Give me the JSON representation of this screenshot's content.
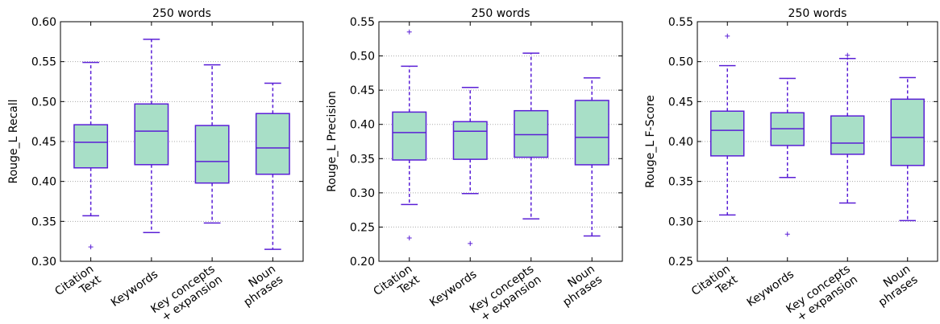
{
  "chart_data": [
    {
      "type": "box",
      "title": "250 words",
      "ylabel": "Rouge_L Recall",
      "categories": [
        [
          "Citation",
          "Text"
        ],
        [
          "Keywords"
        ],
        [
          "Key concepts",
          "+ expansion"
        ],
        [
          "Noun",
          "phrases"
        ]
      ],
      "boxes": [
        {
          "whislo": 0.357,
          "q1": 0.417,
          "med": 0.449,
          "q3": 0.471,
          "whishi": 0.549,
          "fliers": [
            0.318
          ]
        },
        {
          "whislo": 0.336,
          "q1": 0.421,
          "med": 0.463,
          "q3": 0.497,
          "whishi": 0.578,
          "fliers": []
        },
        {
          "whislo": 0.348,
          "q1": 0.398,
          "med": 0.425,
          "q3": 0.47,
          "whishi": 0.546,
          "fliers": []
        },
        {
          "whislo": 0.315,
          "q1": 0.409,
          "med": 0.442,
          "q3": 0.485,
          "whishi": 0.523,
          "fliers": []
        }
      ],
      "ylim": [
        0.3,
        0.6
      ],
      "yticks": [
        {
          "value": 0.3,
          "label": "0.30"
        },
        0.35,
        {
          "value": 0.4,
          "label": "0.40"
        },
        0.45,
        {
          "value": 0.5,
          "label": "0.50"
        },
        0.55,
        {
          "value": 0.6,
          "label": "0.60"
        }
      ],
      "grid": true,
      "color": "#5a1fd6",
      "fill": "#a8dfc7"
    },
    {
      "type": "box",
      "title": "250 words",
      "ylabel": "Rouge_L Precision",
      "categories": [
        [
          "Citation",
          "Text"
        ],
        [
          "Keywords"
        ],
        [
          "Key concepts",
          "+ expansion"
        ],
        [
          "Noun",
          "phrases"
        ]
      ],
      "boxes": [
        {
          "whislo": 0.283,
          "q1": 0.348,
          "med": 0.388,
          "q3": 0.418,
          "whishi": 0.485,
          "fliers": [
            0.535,
            0.234
          ]
        },
        {
          "whislo": 0.299,
          "q1": 0.349,
          "med": 0.39,
          "q3": 0.404,
          "whishi": 0.454,
          "fliers": [
            0.226
          ]
        },
        {
          "whislo": 0.262,
          "q1": 0.352,
          "med": 0.385,
          "q3": 0.42,
          "whishi": 0.504,
          "fliers": []
        },
        {
          "whislo": 0.237,
          "q1": 0.341,
          "med": 0.381,
          "q3": 0.435,
          "whishi": 0.468,
          "fliers": []
        }
      ],
      "ylim": [
        0.2,
        0.55
      ],
      "yticks": [
        {
          "value": 0.2,
          "label": "0.20"
        },
        0.25,
        {
          "value": 0.3,
          "label": "0.30"
        },
        0.35,
        {
          "value": 0.4,
          "label": "0.40"
        },
        0.45,
        {
          "value": 0.5,
          "label": "0.50"
        },
        0.55
      ],
      "grid": true,
      "color": "#5a1fd6",
      "fill": "#a8dfc7"
    },
    {
      "type": "box",
      "title": "250 words",
      "ylabel": "Rouge_L F-Score",
      "categories": [
        [
          "Citation",
          "Text"
        ],
        [
          "Keywords"
        ],
        [
          "Key concepts",
          "+ expansion"
        ],
        [
          "Noun",
          "phrases"
        ]
      ],
      "boxes": [
        {
          "whislo": 0.308,
          "q1": 0.382,
          "med": 0.414,
          "q3": 0.438,
          "whishi": 0.495,
          "fliers": [
            0.532
          ]
        },
        {
          "whislo": 0.355,
          "q1": 0.395,
          "med": 0.416,
          "q3": 0.436,
          "whishi": 0.479,
          "fliers": [
            0.284
          ]
        },
        {
          "whislo": 0.323,
          "q1": 0.384,
          "med": 0.398,
          "q3": 0.432,
          "whishi": 0.504,
          "fliers": [
            0.508
          ]
        },
        {
          "whislo": 0.301,
          "q1": 0.37,
          "med": 0.405,
          "q3": 0.453,
          "whishi": 0.48,
          "fliers": []
        }
      ],
      "ylim": [
        0.25,
        0.55
      ],
      "yticks": [
        0.25,
        {
          "value": 0.3,
          "label": "0.30"
        },
        0.35,
        {
          "value": 0.4,
          "label": "0.40"
        },
        0.45,
        {
          "value": 0.5,
          "label": "0.50"
        },
        0.55
      ],
      "grid": true,
      "color": "#5a1fd6",
      "fill": "#a8dfc7"
    }
  ]
}
